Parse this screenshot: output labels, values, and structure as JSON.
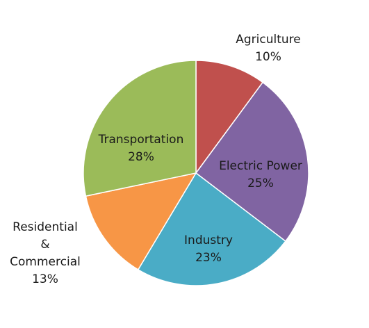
{
  "chart_data": {
    "type": "pie",
    "title": "",
    "slices": [
      {
        "label": "Agriculture",
        "value": 10,
        "value_label": "10%",
        "color": "#c0504d"
      },
      {
        "label": "Electric Power",
        "value": 25,
        "value_label": "25%",
        "color": "#8064a2"
      },
      {
        "label": "Industry",
        "value": 23,
        "value_label": "23%",
        "color": "#4aacc6"
      },
      {
        "label": "Residential\n&\nCommercial",
        "value": 13,
        "value_label": "13%",
        "color": "#f79646"
      },
      {
        "label": "Transportation",
        "value": 28,
        "value_label": "28%",
        "color": "#9bbb59"
      }
    ],
    "start_angle": "12 o'clock, clockwise"
  }
}
